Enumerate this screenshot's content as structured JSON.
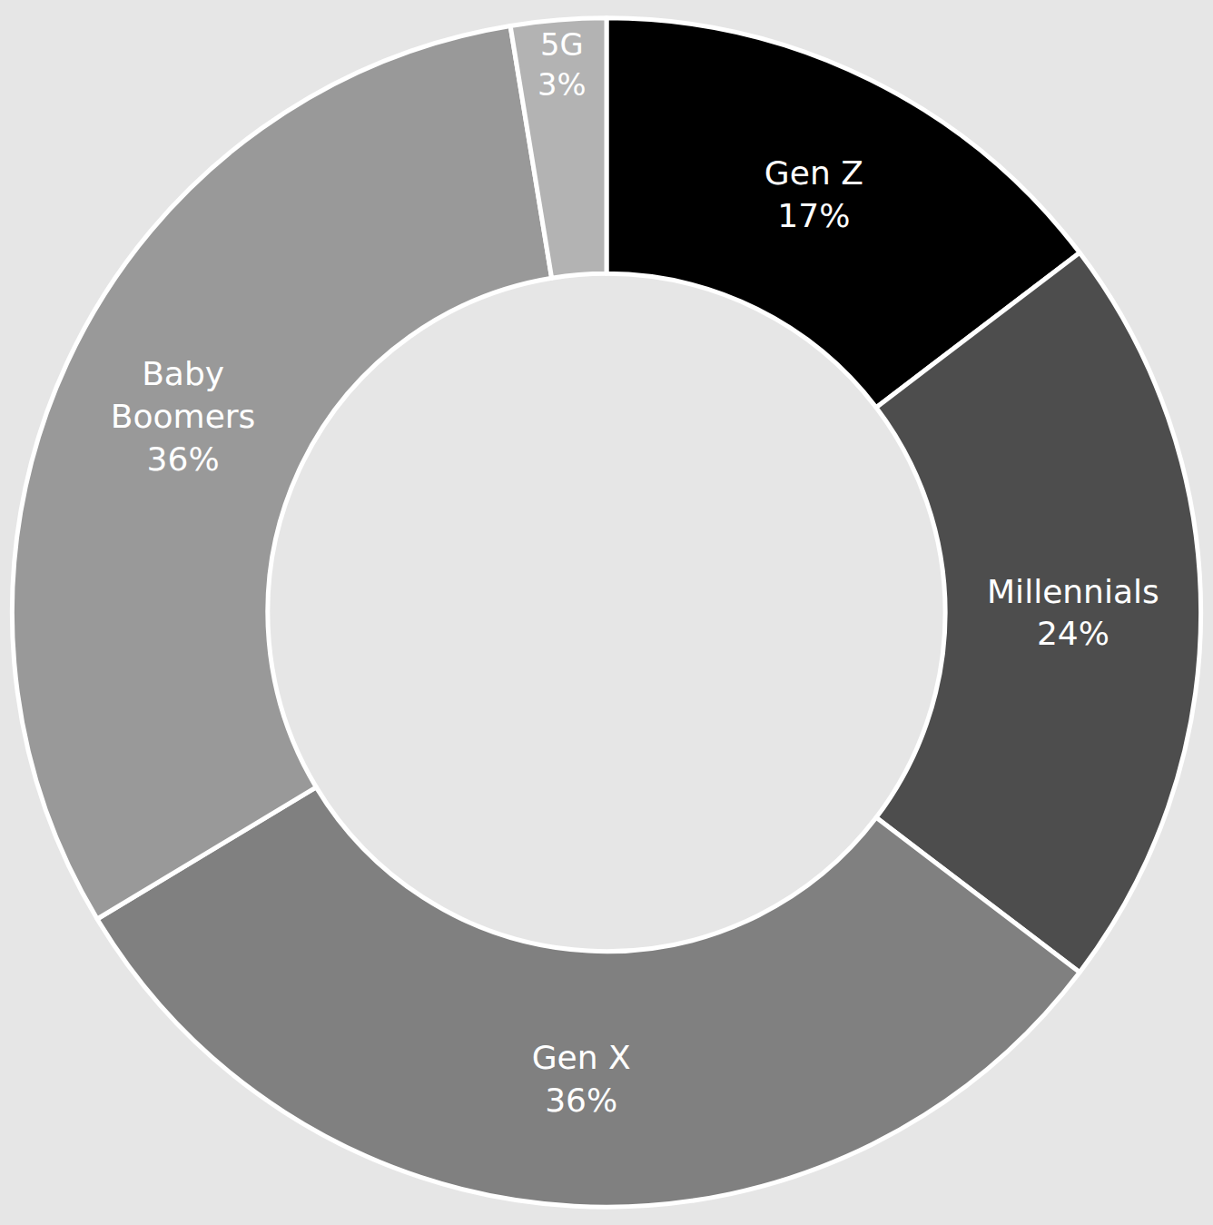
{
  "chart_data": {
    "type": "pie",
    "categories": [
      "Gen Z",
      "Millennials",
      "Gen X",
      "Baby Boomers",
      "5G"
    ],
    "values": [
      17,
      24,
      36,
      36,
      3
    ],
    "value_labels": [
      "17%",
      "24%",
      "36%",
      "36%",
      "3%"
    ],
    "colors": [
      "#000000",
      "#4d4d4d",
      "#808080",
      "#999999",
      "#b3b3b3"
    ],
    "data_labels": true
  }
}
